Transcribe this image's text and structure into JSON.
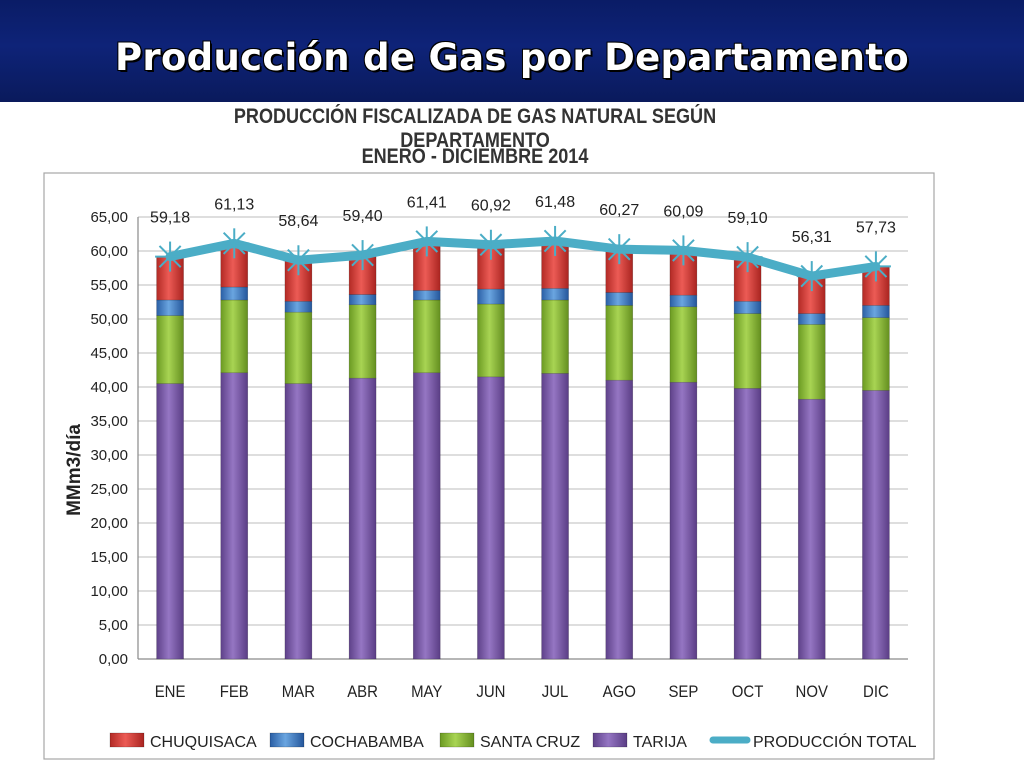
{
  "slide": {
    "title": "Producción de Gas por Departamento"
  },
  "chart_data": {
    "type": "bar",
    "stacked": true,
    "title": "PRODUCCIÓN FISCALIZADA DE GAS NATURAL SEGÚN DEPARTAMENTO",
    "subtitle": "ENERO - DICIEMBRE 2014",
    "ylabel": "MMm3/día",
    "xlabel": "",
    "ylim": [
      0,
      65
    ],
    "y_ticks": [
      "0,00",
      "5,00",
      "10,00",
      "15,00",
      "20,00",
      "25,00",
      "30,00",
      "35,00",
      "40,00",
      "45,00",
      "50,00",
      "55,00",
      "60,00",
      "65,00"
    ],
    "grid": true,
    "legend_position": "bottom",
    "categories": [
      "ENE",
      "FEB",
      "MAR",
      "ABR",
      "MAY",
      "JUN",
      "JUL",
      "AGO",
      "SEP",
      "OCT",
      "NOV",
      "DIC"
    ],
    "series": [
      {
        "name": "TARIJA",
        "type": "bar",
        "color": "#7e5fa8",
        "values": [
          40.5,
          42.1,
          40.5,
          41.3,
          42.1,
          41.5,
          42.0,
          41.0,
          40.7,
          39.8,
          38.2,
          39.5
        ]
      },
      {
        "name": "SANTA CRUZ",
        "type": "bar",
        "color": "#8ab43a",
        "values": [
          10.0,
          10.7,
          10.5,
          10.8,
          10.7,
          10.7,
          10.8,
          11.0,
          11.1,
          11.0,
          11.0,
          10.7
        ]
      },
      {
        "name": "COCHABAMBA",
        "type": "bar",
        "color": "#3d7cc4",
        "values": [
          2.3,
          1.9,
          1.6,
          1.5,
          1.4,
          2.2,
          1.7,
          1.9,
          1.7,
          1.8,
          1.6,
          1.8
        ]
      },
      {
        "name": "CHUQUISACA",
        "type": "bar",
        "color": "#d23a35",
        "values": [
          6.38,
          6.43,
          6.04,
          5.8,
          7.21,
          6.52,
          6.98,
          6.37,
          6.59,
          6.5,
          5.51,
          5.73
        ]
      },
      {
        "name": "PRODUCCIÓN TOTAL",
        "type": "line",
        "color": "#4badc6",
        "values": [
          59.18,
          61.13,
          58.64,
          59.4,
          61.41,
          60.92,
          61.48,
          60.27,
          60.09,
          59.1,
          56.31,
          57.73
        ]
      }
    ],
    "total_labels": [
      "59,18",
      "61,13",
      "58,64",
      "59,40",
      "61,41",
      "60,92",
      "61,48",
      "60,27",
      "60,09",
      "59,10",
      "56,31",
      "57,73"
    ],
    "legend": [
      {
        "name": "CHUQUISACA",
        "color": "#d23a35",
        "kind": "box"
      },
      {
        "name": "COCHABAMBA",
        "color": "#3d7cc4",
        "kind": "box"
      },
      {
        "name": "SANTA CRUZ",
        "color": "#8ab43a",
        "kind": "box"
      },
      {
        "name": "TARIJA",
        "color": "#7e5fa8",
        "kind": "box"
      },
      {
        "name": "PRODUCCIÓN TOTAL",
        "color": "#4badc6",
        "kind": "line"
      }
    ]
  }
}
